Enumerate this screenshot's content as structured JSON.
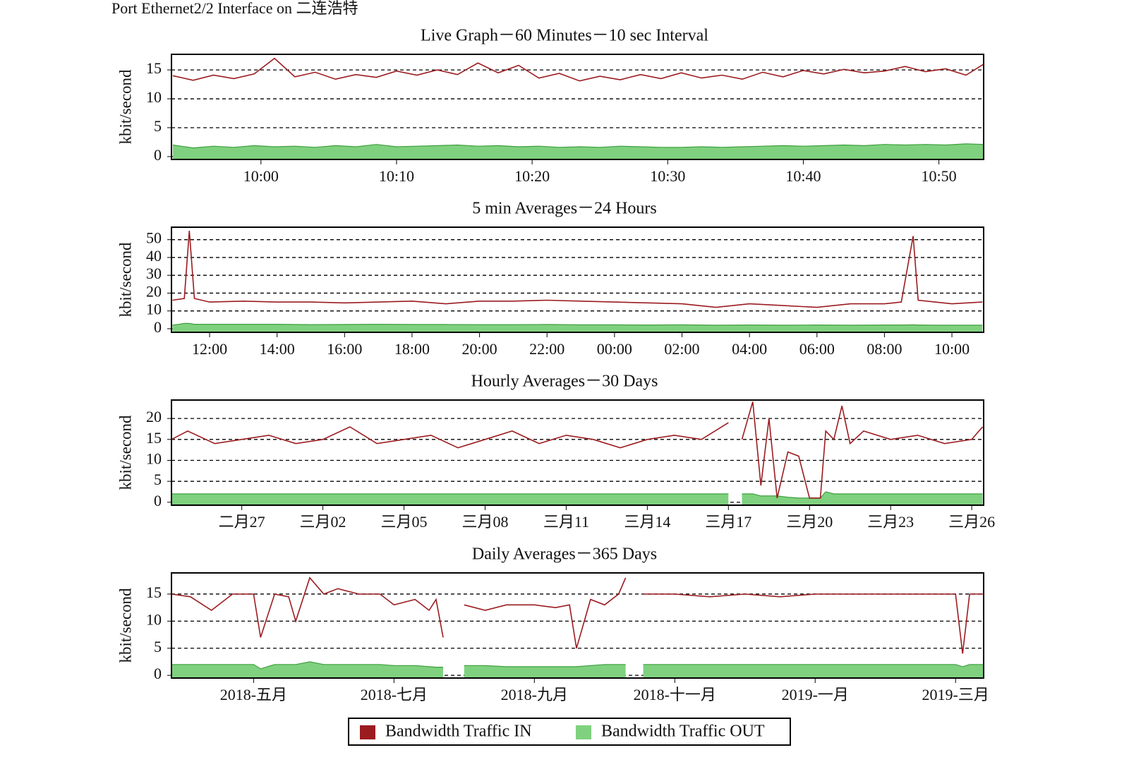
{
  "page_title": "Port Ethernet2/2 Interface on 二连浩特",
  "chart_data": [
    {
      "type": "line",
      "title": "Live Graph－60 Minutes－10 sec Interval",
      "ylabel": "kbit/second",
      "grid": true,
      "legend": "bottom",
      "x": [
        -6.5,
        -5,
        -3.5,
        -2,
        -0.5,
        1,
        2.5,
        4,
        5.5,
        7,
        8.5,
        10,
        11.5,
        13,
        14.5,
        16,
        17.5,
        19,
        20.5,
        22,
        23.5,
        25,
        26.5,
        28,
        29.5,
        31,
        32.5,
        34,
        35.5,
        37,
        38.5,
        40,
        41.5,
        43,
        44.5,
        46,
        47.5,
        49,
        50.5,
        52,
        53.3
      ],
      "xlim": [
        -6.6,
        53.3
      ],
      "ylim": [
        -0.5,
        17.7
      ],
      "yticks": [
        0,
        5,
        10,
        15
      ],
      "xticks": [
        {
          "value": 0,
          "label": "10:00"
        },
        {
          "value": 10,
          "label": "10:10"
        },
        {
          "value": 20,
          "label": "10:20"
        },
        {
          "value": 30,
          "label": "10:30"
        },
        {
          "value": 40,
          "label": "10:40"
        },
        {
          "value": 50,
          "label": "10:50"
        }
      ],
      "series": [
        {
          "name": "Bandwidth Traffic IN",
          "color": "#9b1c20",
          "values": [
            14,
            13.2,
            14.1,
            13.5,
            14.3,
            17,
            13.8,
            14.6,
            13.4,
            14.2,
            13.7,
            14.8,
            14.1,
            15,
            14.2,
            16.2,
            14.5,
            15.8,
            13.6,
            14.4,
            13.1,
            13.9,
            13.3,
            14.2,
            13.5,
            14.5,
            13.6,
            14.1,
            13.4,
            14.6,
            13.8,
            14.9,
            14.3,
            15.1,
            14.5,
            14.8,
            15.6,
            14.7,
            15.2,
            14.1,
            16
          ]
        },
        {
          "name": "Bandwidth Traffic OUT",
          "color": "#3f9f3f",
          "fill": "#7fd17f",
          "values": [
            2,
            1.5,
            1.8,
            1.6,
            1.9,
            1.7,
            1.8,
            1.6,
            1.9,
            1.7,
            2.1,
            1.7,
            1.8,
            1.9,
            2,
            1.8,
            1.9,
            1.7,
            1.8,
            1.6,
            1.7,
            1.6,
            1.8,
            1.7,
            1.6,
            1.6,
            1.7,
            1.6,
            1.7,
            1.8,
            1.9,
            1.8,
            1.9,
            2,
            1.9,
            2.1,
            2,
            2.1,
            2,
            2.2,
            2.1
          ]
        }
      ]
    },
    {
      "type": "line",
      "title": "5 min Averages－24 Hours",
      "ylabel": "kbit/second",
      "grid": true,
      "x": [
        -1.1,
        -0.75,
        -0.6,
        -0.45,
        0,
        1,
        2,
        3,
        4,
        5,
        6,
        7,
        8,
        9,
        10,
        11,
        12,
        13,
        14,
        15,
        16,
        17,
        18,
        19,
        20,
        20.5,
        20.85,
        21,
        21.5,
        22,
        22.9
      ],
      "xlim": [
        -1.13,
        22.94
      ],
      "ylim": [
        -2,
        57
      ],
      "yticks": [
        0,
        10,
        20,
        30,
        40,
        50
      ],
      "xticks": [
        {
          "value": 0,
          "label": "12:00"
        },
        {
          "value": 2,
          "label": "14:00"
        },
        {
          "value": 4,
          "label": "16:00"
        },
        {
          "value": 6,
          "label": "18:00"
        },
        {
          "value": 8,
          "label": "20:00"
        },
        {
          "value": 10,
          "label": "22:00"
        },
        {
          "value": 12,
          "label": "00:00"
        },
        {
          "value": 14,
          "label": "02:00"
        },
        {
          "value": 16,
          "label": "04:00"
        },
        {
          "value": 18,
          "label": "06:00"
        },
        {
          "value": 20,
          "label": "08:00"
        },
        {
          "value": 22,
          "label": "10:00"
        }
      ],
      "series": [
        {
          "color": "#9b1c20",
          "values": [
            16,
            17,
            55,
            17,
            15,
            15.5,
            15,
            15,
            14.5,
            15,
            15.5,
            14,
            15.5,
            15.5,
            16,
            15.5,
            15,
            14.5,
            14,
            12,
            14,
            13,
            12,
            14,
            14,
            15,
            52,
            16,
            15,
            14,
            15
          ]
        },
        {
          "color": "#3f9f3f",
          "fill": "#7fd17f",
          "values": [
            2,
            3,
            3,
            2.5,
            2.5,
            2.5,
            2.5,
            2.3,
            2.4,
            2.5,
            2.4,
            2.4,
            2.3,
            2.3,
            2.4,
            2.2,
            2.2,
            2.1,
            2.2,
            2,
            2.1,
            2,
            2.1,
            2,
            2.1,
            2.1,
            2.2,
            2.1,
            2,
            2,
            2
          ]
        }
      ]
    },
    {
      "type": "line",
      "title": "Hourly Averages－30 Days",
      "ylabel": "kbit/second",
      "grid": true,
      "x": [
        -2.6,
        -2,
        -1,
        0,
        1,
        2,
        3,
        4,
        5,
        6,
        7,
        8,
        9,
        10,
        11,
        12,
        13,
        14,
        15,
        16,
        17,
        18,
        18.3,
        18.5,
        18.9,
        19.2,
        19.5,
        19.8,
        20.2,
        20.6,
        21,
        21.4,
        21.6,
        21.9,
        22.2,
        22.5,
        23,
        24,
        25,
        26,
        27,
        27.4
      ],
      "xlim": [
        -2.6,
        27.44
      ],
      "ylim": [
        -0.7,
        24.4
      ],
      "yticks": [
        0,
        5,
        10,
        15,
        20
      ],
      "xticks": [
        {
          "value": 0,
          "label": "二月27"
        },
        {
          "value": 3,
          "label": "三月02"
        },
        {
          "value": 6,
          "label": "三月05"
        },
        {
          "value": 9,
          "label": "三月08"
        },
        {
          "value": 12,
          "label": "三月11"
        },
        {
          "value": 15,
          "label": "三月14"
        },
        {
          "value": 18,
          "label": "三月17"
        },
        {
          "value": 21,
          "label": "三月20"
        },
        {
          "value": 24,
          "label": "三月23"
        },
        {
          "value": 27,
          "label": "三月26"
        }
      ],
      "series": [
        {
          "color": "#9b1c20",
          "values": [
            15,
            17,
            14,
            15,
            16,
            14,
            15,
            18,
            14,
            15,
            16,
            13,
            15,
            17,
            14,
            16,
            15,
            13,
            15,
            16,
            15,
            19,
            null,
            15,
            24,
            4,
            20,
            1,
            12,
            11,
            1,
            1,
            17,
            15,
            23,
            14,
            17,
            15,
            16,
            14,
            15,
            18
          ]
        },
        {
          "color": "#3f9f3f",
          "fill": "#7fd17f",
          "values": [
            2,
            2,
            2,
            2,
            2,
            2,
            2,
            2,
            2,
            2,
            2,
            2,
            2,
            2,
            2,
            2,
            2,
            2,
            2,
            2,
            2,
            2,
            null,
            2,
            2,
            1.5,
            1.5,
            1.5,
            1.2,
            1,
            1,
            1,
            2.5,
            2,
            2,
            2,
            2,
            2,
            2,
            2,
            2,
            2
          ]
        }
      ]
    },
    {
      "type": "line",
      "title": "Daily Averages－365 Days",
      "ylabel": "kbit/second",
      "grid": true,
      "x": [
        -1.17,
        -0.9,
        -0.6,
        -0.3,
        0,
        0.1,
        0.3,
        0.5,
        0.6,
        0.8,
        1,
        1.2,
        1.5,
        1.8,
        2,
        2.3,
        2.5,
        2.6,
        2.7,
        2.8,
        3,
        3.3,
        3.6,
        4,
        4.3,
        4.5,
        4.6,
        4.8,
        5,
        5.2,
        5.3,
        5.4,
        5.55,
        6,
        6.5,
        7,
        7.5,
        8,
        8.5,
        9,
        9.5,
        10,
        10.1,
        10.2,
        10.4
      ],
      "xlim": [
        -1.17,
        10.4
      ],
      "ylim": [
        -0.5,
        18.9
      ],
      "yticks": [
        0,
        5,
        10,
        15
      ],
      "xticks": [
        {
          "value": 0,
          "label": "2018-五月"
        },
        {
          "value": 2,
          "label": "2018-七月"
        },
        {
          "value": 4,
          "label": "2018-九月"
        },
        {
          "value": 6,
          "label": "2018-十一月"
        },
        {
          "value": 8,
          "label": "2019-一月"
        },
        {
          "value": 10,
          "label": "2019-三月"
        }
      ],
      "series": [
        {
          "color": "#9b1c20",
          "values": [
            15,
            14.5,
            12,
            15,
            15,
            7,
            15,
            14.5,
            10,
            18,
            15,
            16,
            15,
            15,
            13,
            14,
            12,
            14,
            7,
            null,
            13,
            12,
            13,
            13,
            12.5,
            13,
            5,
            14,
            13,
            15,
            18,
            null,
            15,
            15,
            14.5,
            15,
            14.5,
            15,
            15,
            15,
            15,
            15,
            4,
            15,
            15
          ]
        },
        {
          "color": "#3f9f3f",
          "fill": "#7fd17f",
          "values": [
            2,
            2,
            2,
            2,
            2,
            1.2,
            2,
            2,
            2,
            2.5,
            2,
            2,
            2,
            2,
            1.8,
            1.8,
            1.6,
            1.5,
            1.5,
            null,
            1.8,
            1.8,
            1.6,
            1.6,
            1.6,
            1.6,
            1.6,
            1.8,
            2,
            2,
            2,
            null,
            2,
            2,
            2,
            2,
            2,
            2,
            2,
            2,
            2,
            2,
            1.6,
            2,
            2
          ]
        }
      ]
    }
  ]
}
